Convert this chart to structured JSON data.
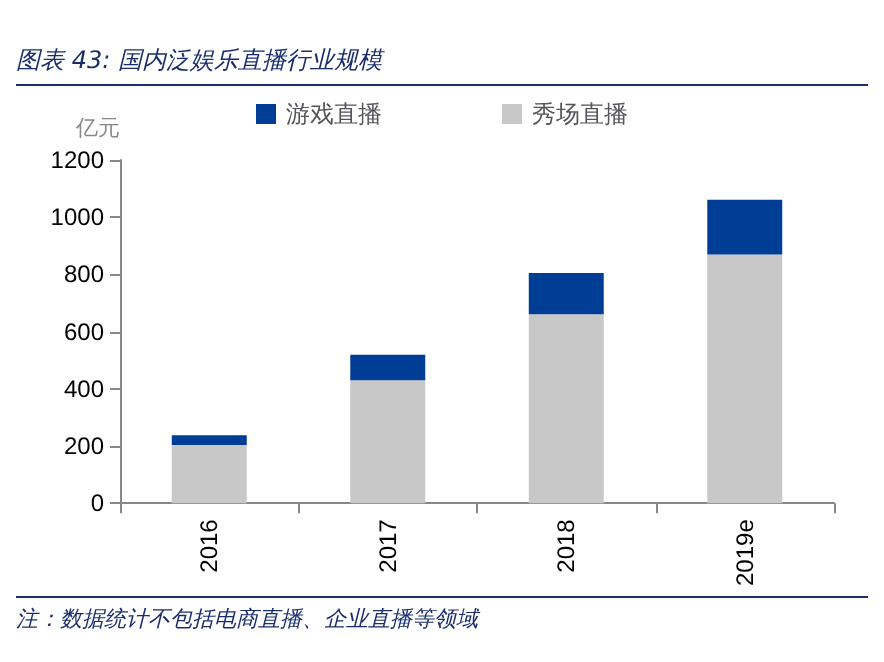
{
  "chart_data": {
    "type": "bar",
    "title": "图表 43:  国内泛娱乐直播行业规模",
    "ylabel": "亿元",
    "categories": [
      "2016",
      "2017",
      "2018",
      "2019e"
    ],
    "stacked": true,
    "series": [
      {
        "name": "秀场直播",
        "color": "#c8c8c8",
        "values": [
          204,
          430,
          661,
          870
        ]
      },
      {
        "name": "游戏直播",
        "color": "#003e96",
        "values": [
          34,
          89,
          144,
          191
        ]
      }
    ],
    "ylim": [
      0,
      1200
    ],
    "yticks": [
      0,
      200,
      400,
      600,
      800,
      1000,
      1200
    ],
    "legend": "top",
    "grid": false,
    "annotations": [
      "注：数据统计不包括电商直播、企业直播等领域"
    ]
  }
}
